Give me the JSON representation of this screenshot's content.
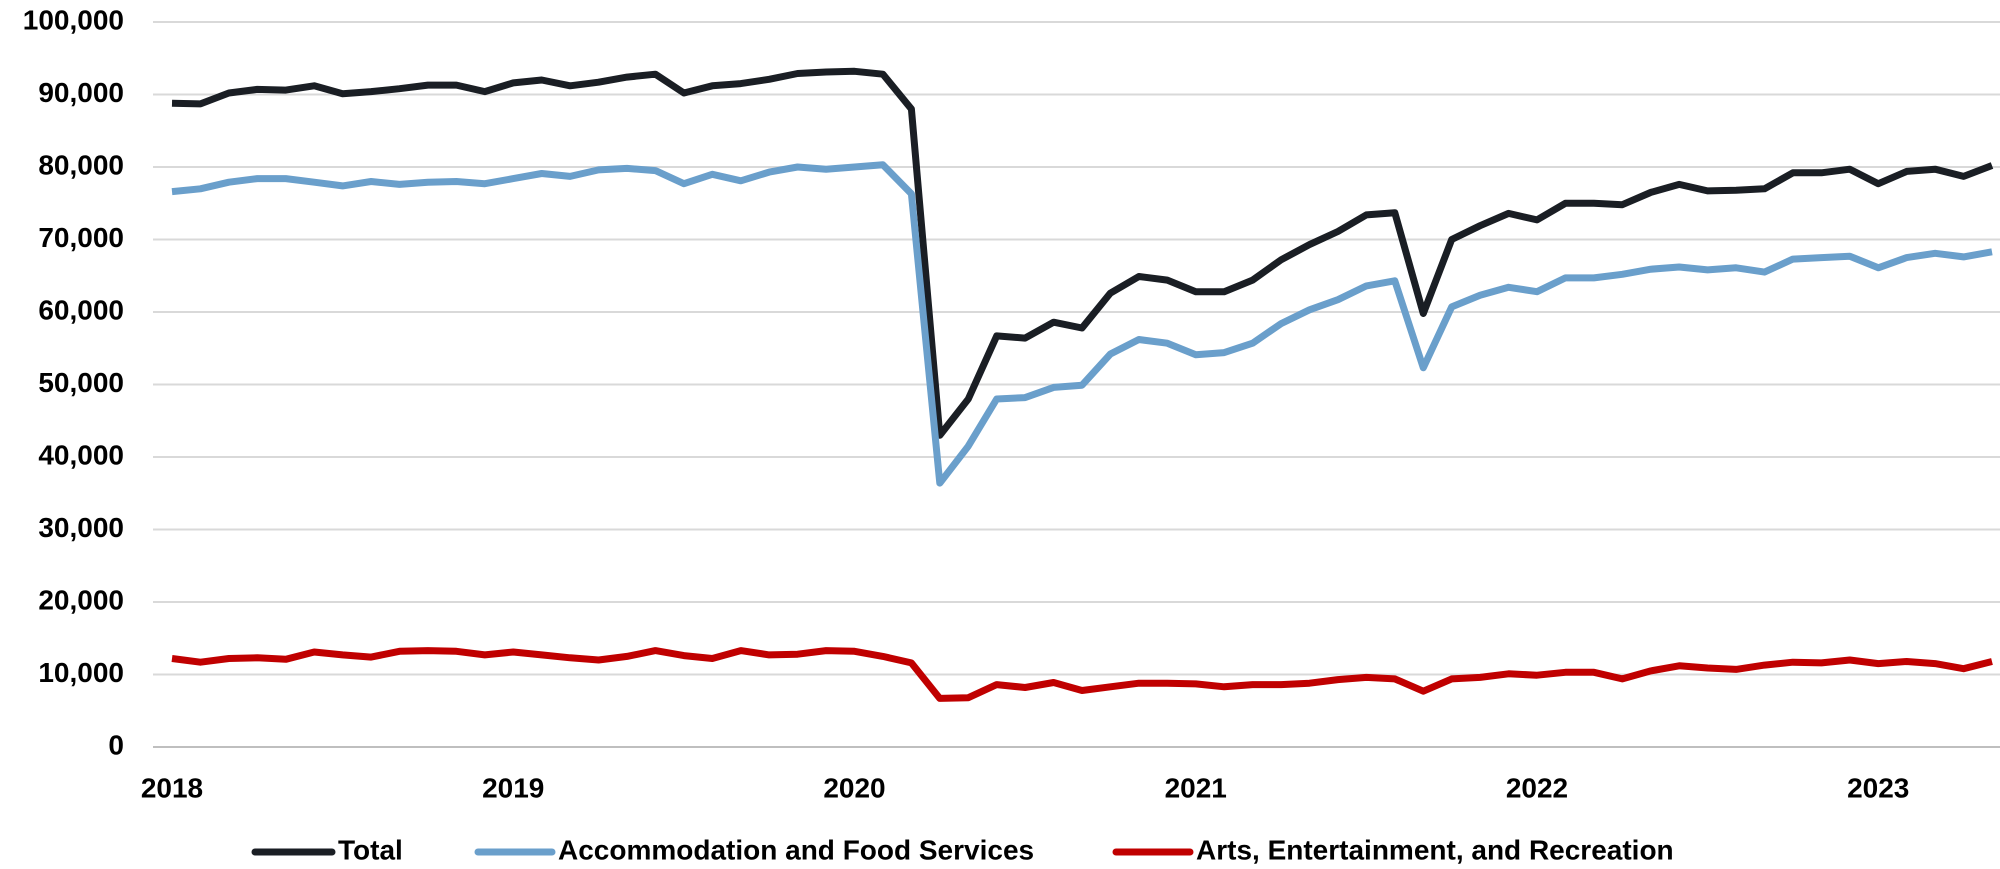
{
  "chart_data": {
    "type": "line",
    "categories": [
      "2018",
      null,
      null,
      null,
      null,
      null,
      null,
      null,
      null,
      null,
      null,
      null,
      "2019",
      null,
      null,
      null,
      null,
      null,
      null,
      null,
      null,
      null,
      null,
      null,
      "2020",
      null,
      null,
      null,
      null,
      null,
      null,
      null,
      null,
      null,
      null,
      null,
      "2021",
      null,
      null,
      null,
      null,
      null,
      null,
      null,
      null,
      null,
      null,
      null,
      "2022",
      null,
      null,
      null,
      null,
      null,
      null,
      null,
      null,
      null,
      null,
      null,
      "2023",
      null,
      null,
      null,
      null
    ],
    "series": [
      {
        "name": "Total",
        "color": "#1a1e24",
        "values": [
          88800,
          88700,
          90200,
          90700,
          90600,
          91200,
          90100,
          90400,
          90800,
          91300,
          91300,
          90400,
          91600,
          92000,
          91200,
          91700,
          92400,
          92800,
          90200,
          91200,
          91500,
          92100,
          92900,
          93100,
          93200,
          92800,
          88000,
          43000,
          48000,
          56700,
          56400,
          58600,
          57800,
          62600,
          64900,
          64400,
          62800,
          62800,
          64400,
          67200,
          69300,
          71100,
          73400,
          73700,
          59800,
          70000,
          71900,
          73600,
          72700,
          75000,
          75000,
          74800,
          76500,
          77600,
          76700,
          76800,
          77000,
          79200,
          79200,
          79700,
          77700,
          79400,
          79700,
          78700,
          80200
        ]
      },
      {
        "name": "Accommodation and Food Services",
        "color": "#6a9fcb",
        "values": [
          76600,
          77000,
          77900,
          78400,
          78400,
          77900,
          77400,
          78000,
          77600,
          77900,
          78000,
          77700,
          78400,
          79100,
          78700,
          79600,
          79800,
          79500,
          77700,
          79000,
          78100,
          79300,
          80000,
          79700,
          80000,
          80300,
          76300,
          36400,
          41500,
          48000,
          48200,
          49600,
          49900,
          54200,
          56200,
          55700,
          54100,
          54400,
          55700,
          58400,
          60300,
          61700,
          63600,
          64300,
          52300,
          60700,
          62300,
          63400,
          62800,
          64700,
          64700,
          65200,
          65900,
          66200,
          65800,
          66100,
          65500,
          67300,
          67500,
          67700,
          66100,
          67500,
          68100,
          67600,
          68300
        ]
      },
      {
        "name": "Arts, Entertainment, and Recreation",
        "color": "#c00000",
        "values": [
          12200,
          11700,
          12200,
          12300,
          12100,
          13100,
          12700,
          12400,
          13200,
          13300,
          13200,
          12700,
          13100,
          12700,
          12300,
          12000,
          12500,
          13300,
          12600,
          12200,
          13300,
          12700,
          12800,
          13300,
          13200,
          12500,
          11600,
          6700,
          6800,
          8600,
          8200,
          8900,
          7800,
          8300,
          8800,
          8800,
          8700,
          8300,
          8600,
          8600,
          8800,
          9300,
          9600,
          9400,
          7700,
          9400,
          9600,
          10100,
          9900,
          10300,
          10300,
          9400,
          10500,
          11200,
          10900,
          10700,
          11300,
          11700,
          11600,
          12000,
          11500,
          11800,
          11500,
          10800,
          11800
        ]
      }
    ],
    "ylim": [
      0,
      100000
    ],
    "yticks": [
      0,
      {
        "value": 10000,
        "label": "10,000"
      },
      {
        "value": 20000,
        "label": "20,000"
      },
      {
        "value": 30000,
        "label": "30,000"
      },
      {
        "value": 40000,
        "label": "40,000"
      },
      {
        "value": 50000,
        "label": "50,000"
      },
      {
        "value": 60000,
        "label": "60,000"
      },
      {
        "value": 70000,
        "label": "70,000"
      },
      {
        "value": 80000,
        "label": "80,000"
      },
      {
        "value": 90000,
        "label": "90,000"
      },
      {
        "value": 100000,
        "label": "100,000"
      }
    ],
    "grid": true,
    "legend": "bottom"
  }
}
